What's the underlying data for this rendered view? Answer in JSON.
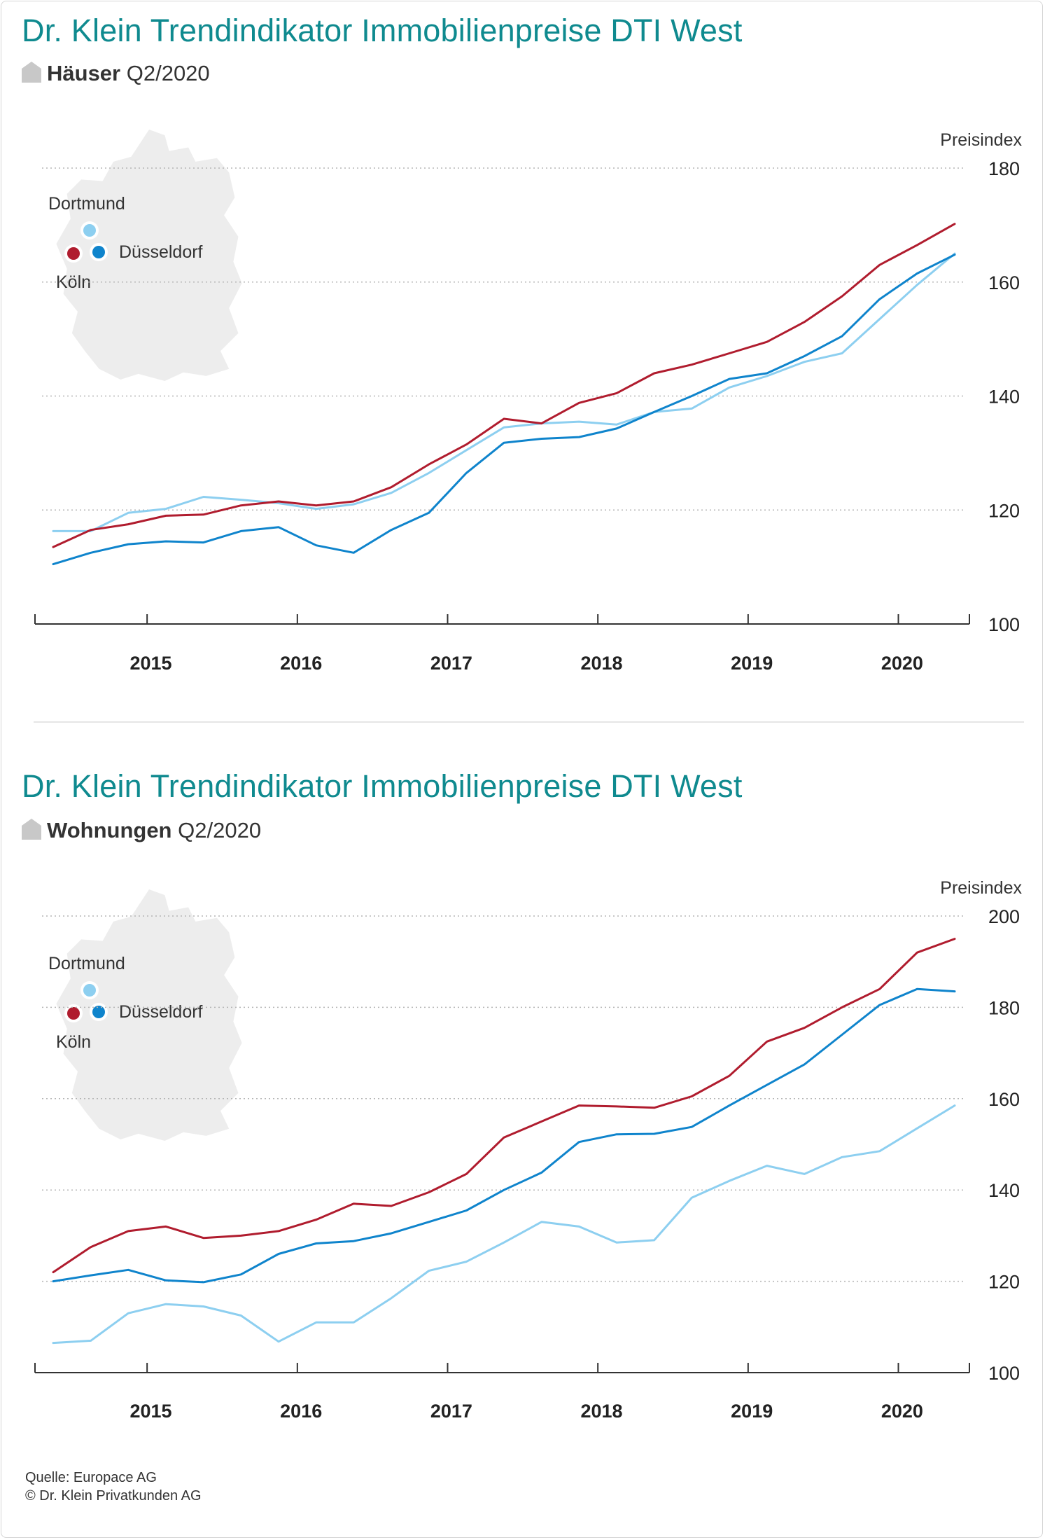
{
  "charts": [
    {
      "title": "Dr. Klein Trendindikator Immobilienpreise DTI West",
      "subtitle_bold": "Häuser",
      "subtitle_period": "Q2/2020",
      "icon": "house-icon",
      "legend": {
        "dortmund": "Dortmund",
        "duesseldorf": "Düsseldorf",
        "koeln": "Köln"
      }
    },
    {
      "title": "Dr. Klein Trendindikator Immobilienpreise DTI West",
      "subtitle_bold": "Wohnungen",
      "subtitle_period": "Q2/2020",
      "icon": "house-icon",
      "legend": {
        "dortmund": "Dortmund",
        "duesseldorf": "Düsseldorf",
        "koeln": "Köln"
      }
    }
  ],
  "colors": {
    "koeln": "#b01c2e",
    "duesseldorf": "#0f84cc",
    "dortmund": "#8dcff0",
    "title": "#0f8a8f"
  },
  "chart_data": [
    {
      "type": "line",
      "title": "Häuser Q2/2020",
      "ylabel": "Preisindex",
      "ylim": [
        100,
        180
      ],
      "yticks": [
        100,
        120,
        140,
        160,
        180
      ],
      "xticks": [
        "2015",
        "2016",
        "2017",
        "2018",
        "2019",
        "2020"
      ],
      "x": [
        "Q2/2014",
        "Q3/2014",
        "Q4/2014",
        "Q1/2015",
        "Q2/2015",
        "Q3/2015",
        "Q4/2015",
        "Q1/2016",
        "Q2/2016",
        "Q3/2016",
        "Q4/2016",
        "Q1/2017",
        "Q2/2017",
        "Q3/2017",
        "Q4/2017",
        "Q1/2018",
        "Q2/2018",
        "Q3/2018",
        "Q4/2018",
        "Q1/2019",
        "Q2/2019",
        "Q3/2019",
        "Q4/2019",
        "Q1/2020",
        "Q2/2020"
      ],
      "series": [
        {
          "name": "Köln",
          "color": "#b01c2e",
          "values": [
            113.5,
            116.5,
            117.5,
            119,
            119.2,
            120.8,
            121.5,
            120.8,
            121.5,
            124,
            128,
            131.5,
            136,
            135.2,
            138.8,
            140.5,
            144,
            145.5,
            147.5,
            149.5,
            153,
            157.5,
            163,
            166.5,
            170.2
          ]
        },
        {
          "name": "Düsseldorf",
          "color": "#0f84cc",
          "values": [
            110.5,
            112.5,
            114,
            114.5,
            114.3,
            116.3,
            117,
            113.8,
            112.5,
            116.5,
            119.5,
            126.5,
            131.8,
            132.5,
            132.8,
            134.3,
            137.2,
            140,
            143,
            144,
            147,
            150.5,
            157,
            161.5,
            164.8
          ]
        },
        {
          "name": "Dortmund",
          "color": "#8dcff0",
          "values": [
            116.3,
            116.3,
            119.5,
            120.2,
            122.3,
            121.8,
            121.2,
            120.2,
            121,
            123,
            126.5,
            130.5,
            134.5,
            135.2,
            135.5,
            135,
            137.2,
            137.8,
            141.5,
            143.5,
            146,
            147.5,
            153.5,
            159.5,
            165
          ]
        }
      ]
    },
    {
      "type": "line",
      "title": "Wohnungen Q2/2020",
      "ylabel": "Preisindex",
      "ylim": [
        100,
        200
      ],
      "yticks": [
        100,
        120,
        140,
        160,
        180,
        200
      ],
      "xticks": [
        "2015",
        "2016",
        "2017",
        "2018",
        "2019",
        "2020"
      ],
      "x": [
        "Q2/2014",
        "Q3/2014",
        "Q4/2014",
        "Q1/2015",
        "Q2/2015",
        "Q3/2015",
        "Q4/2015",
        "Q1/2016",
        "Q2/2016",
        "Q3/2016",
        "Q4/2016",
        "Q1/2017",
        "Q2/2017",
        "Q3/2017",
        "Q4/2017",
        "Q1/2018",
        "Q2/2018",
        "Q3/2018",
        "Q4/2018",
        "Q1/2019",
        "Q2/2019",
        "Q3/2019",
        "Q4/2019",
        "Q1/2020",
        "Q2/2020"
      ],
      "series": [
        {
          "name": "Köln",
          "color": "#b01c2e",
          "values": [
            122,
            127.5,
            131,
            132,
            129.5,
            130,
            131,
            133.5,
            137,
            136.5,
            139.5,
            143.5,
            151.5,
            155,
            158.5,
            158.3,
            158,
            160.5,
            165,
            172.5,
            175.5,
            180,
            184,
            192,
            195
          ]
        },
        {
          "name": "Düsseldorf",
          "color": "#0f84cc",
          "values": [
            120,
            121.3,
            122.5,
            120.2,
            119.8,
            121.5,
            126,
            128.3,
            128.8,
            130.5,
            133,
            135.5,
            140,
            143.8,
            150.5,
            152.2,
            152.3,
            153.8,
            158.5,
            163,
            167.5,
            174,
            180.5,
            184,
            183.5
          ]
        },
        {
          "name": "Dortmund",
          "color": "#8dcff0",
          "values": [
            106.5,
            107,
            113,
            115,
            114.5,
            112.5,
            106.8,
            111,
            111,
            116.3,
            122.3,
            124.3,
            128.5,
            133,
            132,
            128.5,
            129,
            138.3,
            142,
            145.3,
            143.5,
            147.2,
            148.5,
            153.5,
            158.5
          ]
        }
      ]
    }
  ],
  "footer": {
    "source": "Quelle: Europace AG",
    "copyright": "© Dr. Klein Privatkunden AG"
  }
}
